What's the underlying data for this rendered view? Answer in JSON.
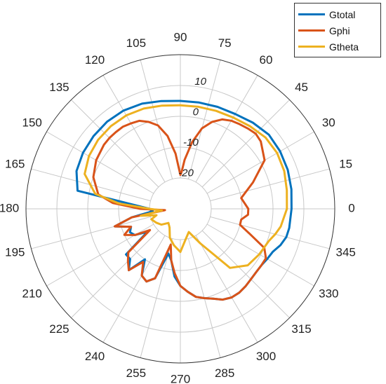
{
  "chart_data": {
    "type": "polar-line",
    "angle_ticks": [
      "0",
      "15",
      "30",
      "45",
      "60",
      "75",
      "90",
      "105",
      "120",
      "135",
      "150",
      "165",
      "180",
      "195",
      "210",
      "225",
      "240",
      "255",
      "270",
      "285",
      "300",
      "315",
      "330",
      "345"
    ],
    "angle_values": [
      0,
      15,
      30,
      45,
      60,
      75,
      90,
      105,
      120,
      135,
      150,
      165,
      180,
      195,
      210,
      225,
      240,
      255,
      270,
      285,
      300,
      315,
      330,
      345
    ],
    "r_ticks": [
      "-20",
      "-10",
      "0",
      "10"
    ],
    "r_tick_values": [
      -20,
      -10,
      0,
      10
    ],
    "rlim": [
      -30,
      20
    ],
    "grid": true,
    "legend_position": "top-right",
    "angle_unit": "degrees",
    "series": [
      {
        "name": "Gtotal",
        "color": "#0072BD",
        "theta": [
          0,
          10,
          20,
          30,
          40,
          50,
          60,
          70,
          80,
          90,
          100,
          110,
          120,
          130,
          140,
          150,
          160,
          170,
          180,
          185,
          190,
          195,
          200,
          205,
          210,
          215,
          220,
          225,
          230,
          235,
          240,
          245,
          250,
          255,
          260,
          265,
          270,
          275,
          280,
          285,
          290,
          295,
          300,
          305,
          310,
          315,
          320,
          325,
          330,
          335,
          340,
          345,
          350,
          360
        ],
        "r": [
          6.0,
          6.5,
          7.0,
          7.3,
          7.4,
          6.5,
          5.5,
          5.2,
          5.0,
          5.0,
          5.5,
          6.3,
          6.8,
          6.9,
          6.7,
          6.4,
          5.8,
          3.8,
          -20,
          -21,
          -14,
          -8,
          -13,
          -12,
          -13,
          -17,
          -7,
          -7,
          -4,
          -10,
          -5,
          -4,
          -6,
          -15,
          -13,
          -8,
          -5,
          -3,
          -1,
          0,
          1,
          2.5,
          3.2,
          3.2,
          2.8,
          2.3,
          2.0,
          2.0,
          2.5,
          3.0,
          4.5,
          5.5,
          5.8,
          6.0
        ]
      },
      {
        "name": "Gphi",
        "color": "#D95319",
        "theta": [
          0,
          10,
          20,
          30,
          40,
          45,
          50,
          55,
          60,
          65,
          70,
          75,
          80,
          85,
          88,
          90,
          92,
          95,
          100,
          105,
          110,
          115,
          120,
          125,
          130,
          135,
          140,
          150,
          160,
          170,
          175,
          180,
          185,
          190,
          195,
          200,
          205,
          210,
          215,
          220,
          225,
          230,
          235,
          240,
          245,
          250,
          255,
          260,
          265,
          270,
          275,
          280,
          285,
          290,
          295,
          300,
          305,
          310,
          315,
          320,
          325,
          330,
          335,
          340,
          345,
          350,
          355,
          360
        ],
        "r": [
          -8,
          -10,
          -5,
          1.5,
          4,
          4.5,
          4,
          3.5,
          3,
          2,
          0,
          -3,
          -8,
          -14,
          -18,
          -19,
          -17,
          -12,
          -6,
          -2,
          0,
          1.5,
          2,
          2.5,
          2.5,
          2.5,
          2.3,
          1.5,
          0,
          -3,
          -8,
          -17,
          -25,
          -14,
          -8,
          -13,
          -10,
          -13,
          -18,
          -8,
          -6,
          -4,
          -9,
          -5,
          -4,
          -6,
          -18,
          -13,
          -9,
          -5,
          -3,
          -1,
          0,
          1,
          2.5,
          3.2,
          3.2,
          2.8,
          2.3,
          2.0,
          2.0,
          2.0,
          0,
          -6,
          -10,
          -10,
          -8,
          -8
        ]
      },
      {
        "name": "Gtheta",
        "color": "#EDB120",
        "theta": [
          0,
          10,
          20,
          30,
          40,
          50,
          60,
          70,
          80,
          90,
          100,
          110,
          120,
          130,
          140,
          150,
          160,
          170,
          175,
          180,
          185,
          190,
          195,
          200,
          210,
          220,
          230,
          240,
          250,
          260,
          270,
          280,
          290,
          300,
          310,
          320,
          330,
          340,
          345,
          350,
          360
        ],
        "r": [
          4.5,
          5,
          5.8,
          6.2,
          6.0,
          5.0,
          4.2,
          3.8,
          3.6,
          3.6,
          4,
          4.6,
          5,
          5,
          4.8,
          4.2,
          3.0,
          -2,
          -10,
          -20,
          -24,
          -17,
          -22,
          -20,
          -21,
          -22,
          -24,
          -23,
          -20,
          -18,
          -16,
          -20,
          -22,
          -17,
          -5,
          -1.5,
          -0.5,
          0.5,
          1.8,
          3.0,
          4.5
        ]
      }
    ]
  },
  "legend": {
    "items": [
      {
        "label": "Gtotal",
        "color": "#0072BD"
      },
      {
        "label": "Gphi",
        "color": "#D95319"
      },
      {
        "label": "Gtheta",
        "color": "#EDB120"
      }
    ]
  }
}
